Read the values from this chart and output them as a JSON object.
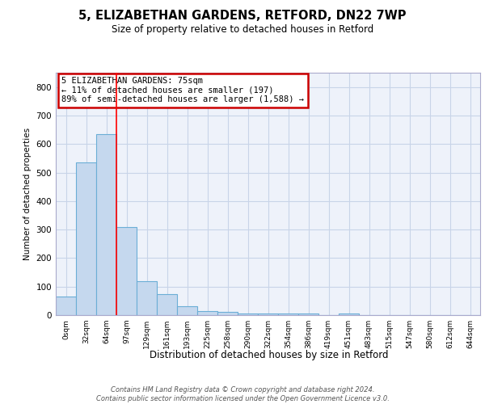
{
  "title1": "5, ELIZABETHAN GARDENS, RETFORD, DN22 7WP",
  "title2": "Size of property relative to detached houses in Retford",
  "xlabel": "Distribution of detached houses by size in Retford",
  "ylabel": "Number of detached properties",
  "bar_labels": [
    "0sqm",
    "32sqm",
    "64sqm",
    "97sqm",
    "129sqm",
    "161sqm",
    "193sqm",
    "225sqm",
    "258sqm",
    "290sqm",
    "322sqm",
    "354sqm",
    "386sqm",
    "419sqm",
    "451sqm",
    "483sqm",
    "515sqm",
    "547sqm",
    "580sqm",
    "612sqm",
    "644sqm"
  ],
  "bar_heights": [
    65,
    535,
    635,
    310,
    120,
    75,
    30,
    15,
    10,
    5,
    5,
    5,
    5,
    0,
    5,
    0,
    0,
    0,
    0,
    0,
    0
  ],
  "bar_color": "#c5d8ee",
  "bar_edge_color": "#6baed6",
  "ylim": [
    0,
    850
  ],
  "yticks": [
    0,
    100,
    200,
    300,
    400,
    500,
    600,
    700,
    800
  ],
  "red_line_x": 2.5,
  "annotation_text": "5 ELIZABETHAN GARDENS: 75sqm\n← 11% of detached houses are smaller (197)\n89% of semi-detached houses are larger (1,588) →",
  "annotation_box_color": "#cc0000",
  "footer1": "Contains HM Land Registry data © Crown copyright and database right 2024.",
  "footer2": "Contains public sector information licensed under the Open Government Licence v3.0.",
  "background_color": "#ffffff",
  "grid_color": "#c8d4e8",
  "ax_bg_color": "#eef2fa"
}
